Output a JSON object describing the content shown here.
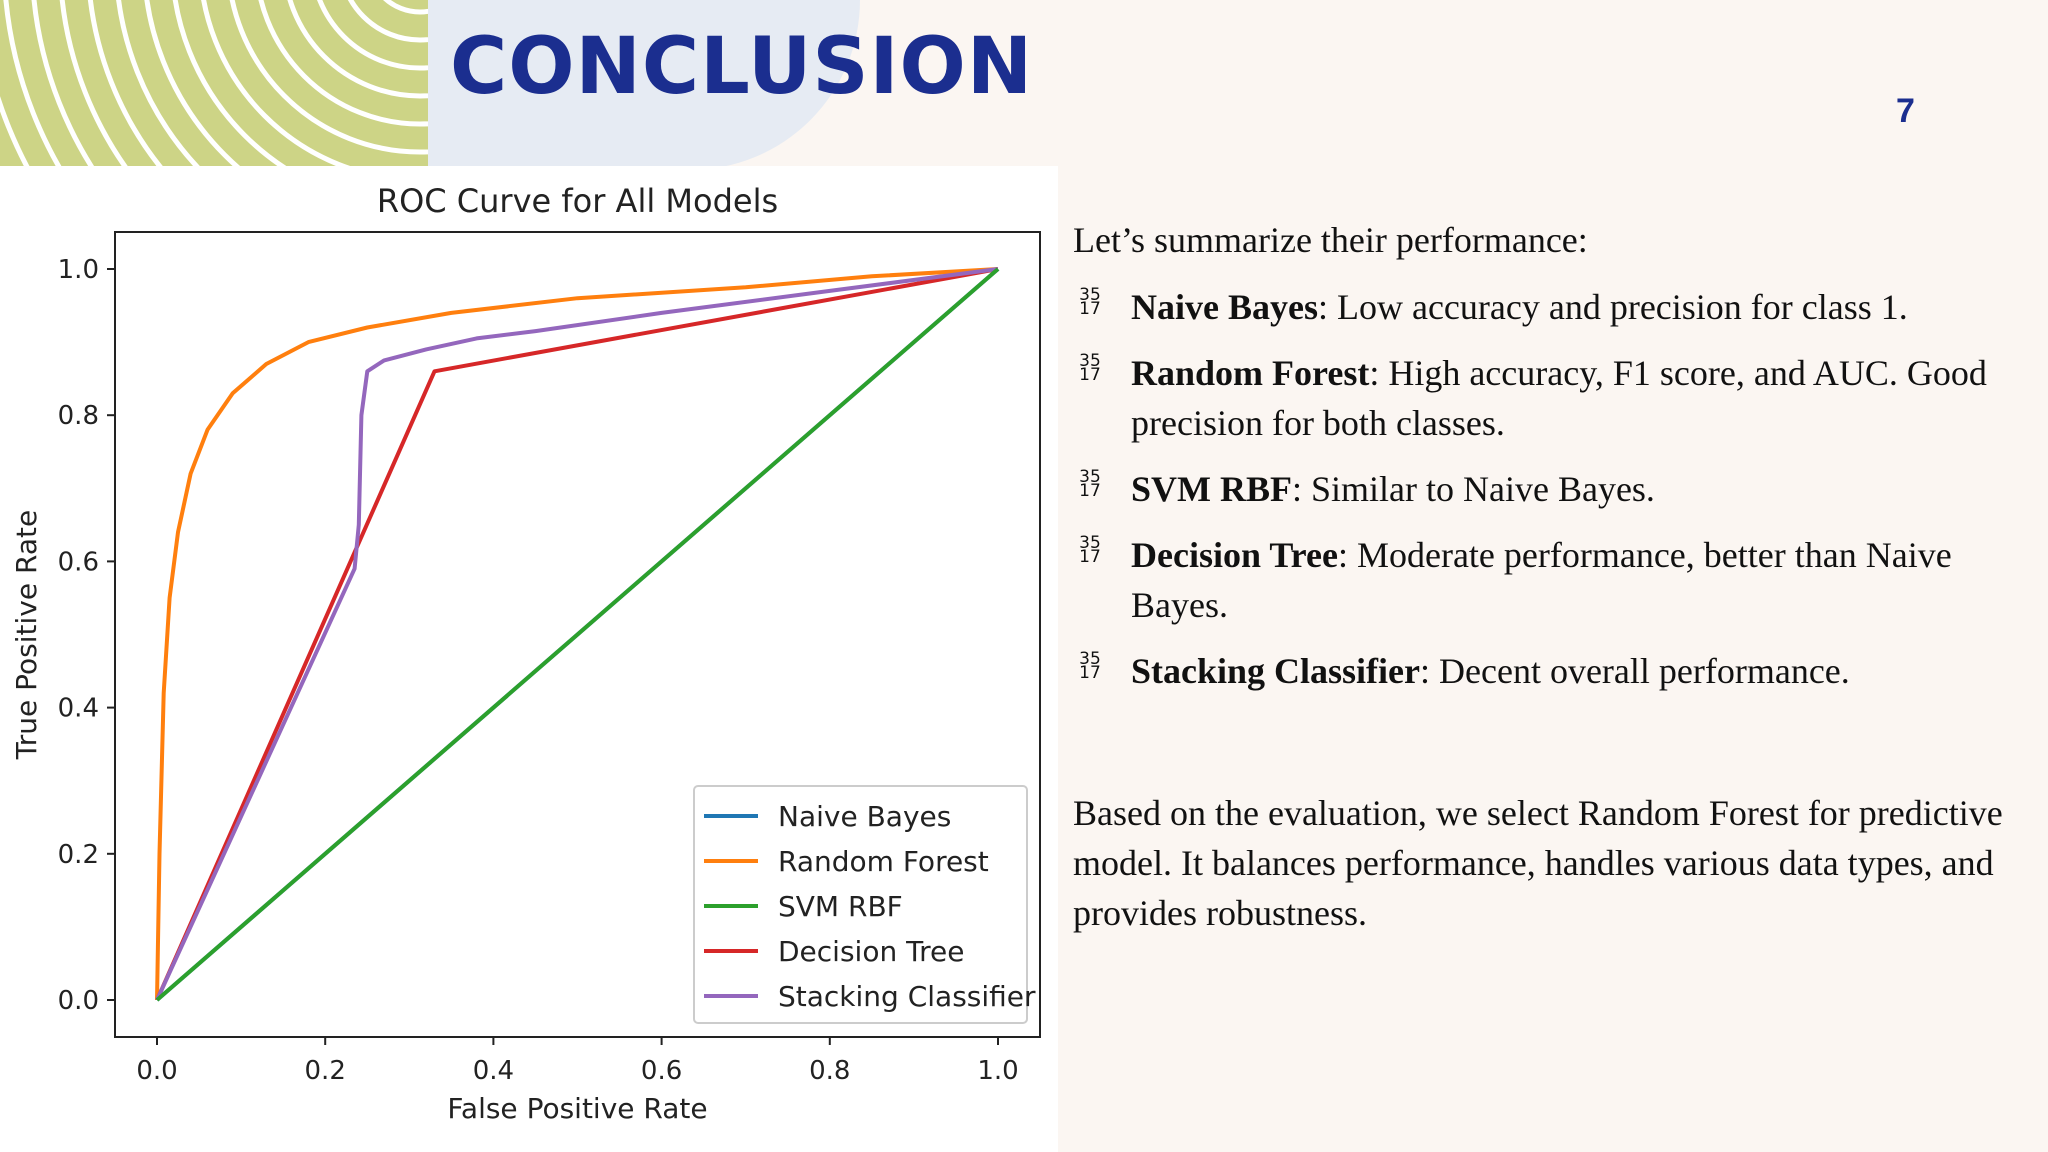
{
  "slide": {
    "title": "CONCLUSION",
    "page_number": "7"
  },
  "summary": {
    "intro": "Let’s summarize their performance:",
    "bullet_marker": {
      "top": "35",
      "bottom": "17"
    },
    "items": [
      {
        "name": "Naive Bayes",
        "text": ": Low accuracy and precision for class 1."
      },
      {
        "name": "Random Forest",
        "text": ": High accuracy, F1 score, and AUC. Good precision for both classes."
      },
      {
        "name": "SVM RBF",
        "text": ": Similar to Naive Bayes."
      },
      {
        "name": "Decision Tree",
        "text": ": Moderate performance, better than Naive Bayes."
      },
      {
        "name": "Stacking Classifier",
        "text": ": Decent overall performance."
      }
    ],
    "conclusion": " Based on the evaluation, we select Random Forest for predictive model. It balances performance, handles various data types, and provides robustness."
  },
  "colors": {
    "accent": "#1b2e8f",
    "stripe": "#cdd486",
    "naive_bayes": "#1f77b4",
    "random_forest": "#ff7f0e",
    "svm_rbf": "#2ca02c",
    "decision_tree": "#d62728",
    "stacking": "#9467bd"
  },
  "chart_data": {
    "type": "line",
    "title": "ROC Curve for All Models",
    "xlabel": "False Positive Rate",
    "ylabel": "True Positive Rate",
    "xlim": [
      0,
      1
    ],
    "ylim": [
      0,
      1
    ],
    "xticks": [
      "0.0",
      "0.2",
      "0.4",
      "0.6",
      "0.8",
      "1.0"
    ],
    "yticks": [
      "0.0",
      "0.2",
      "0.4",
      "0.6",
      "0.8",
      "1.0"
    ],
    "grid": false,
    "legend_position": "bottom-right",
    "series": [
      {
        "name": "Naive Bayes",
        "color": "#1f77b4",
        "x": [
          0,
          1
        ],
        "y": [
          0,
          1
        ]
      },
      {
        "name": "Random Forest",
        "color": "#ff7f0e",
        "x": [
          0,
          0.003,
          0.008,
          0.015,
          0.025,
          0.04,
          0.06,
          0.09,
          0.13,
          0.18,
          0.25,
          0.35,
          0.5,
          0.7,
          0.85,
          1
        ],
        "y": [
          0,
          0.2,
          0.42,
          0.55,
          0.64,
          0.72,
          0.78,
          0.83,
          0.87,
          0.9,
          0.92,
          0.94,
          0.96,
          0.975,
          0.99,
          1
        ]
      },
      {
        "name": "SVM RBF",
        "color": "#2ca02c",
        "x": [
          0,
          1
        ],
        "y": [
          0,
          1
        ]
      },
      {
        "name": "Decision Tree",
        "color": "#d62728",
        "x": [
          0,
          0.33,
          1
        ],
        "y": [
          0,
          0.86,
          1
        ]
      },
      {
        "name": "Stacking Classifier",
        "color": "#9467bd",
        "x": [
          0,
          0.235,
          0.24,
          0.243,
          0.25,
          0.27,
          0.32,
          0.38,
          0.45,
          0.6,
          0.8,
          1
        ],
        "y": [
          0,
          0.59,
          0.65,
          0.8,
          0.86,
          0.875,
          0.89,
          0.905,
          0.915,
          0.94,
          0.97,
          1
        ]
      }
    ]
  }
}
